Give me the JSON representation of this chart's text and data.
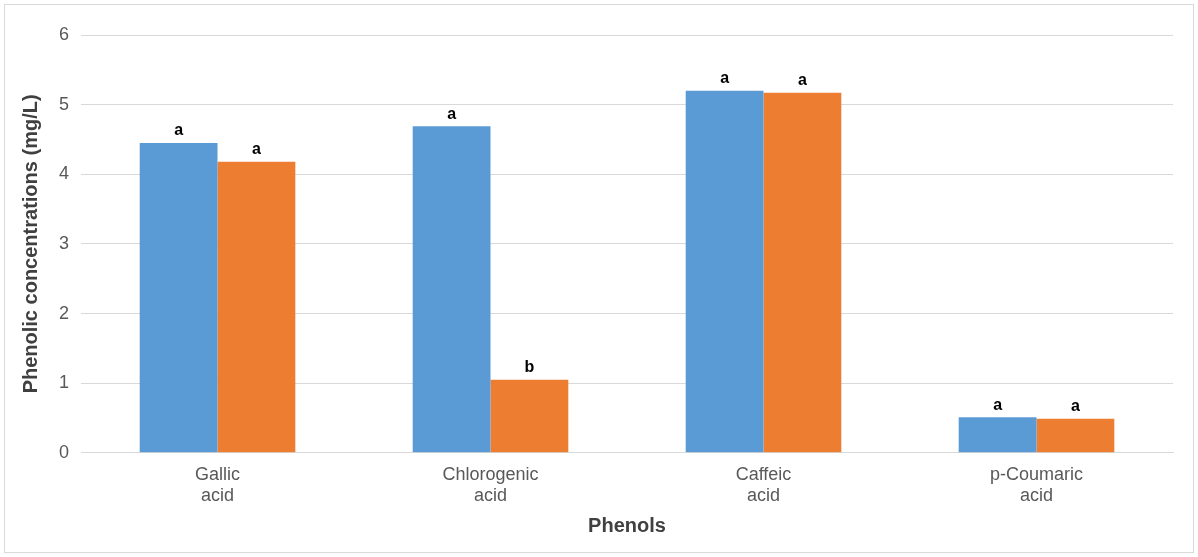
{
  "chart_data": {
    "type": "bar",
    "xlabel": "Phenols",
    "ylabel": "Phenolic concentrations (mg/L)",
    "categories": [
      "Gallic acid",
      "Chlorogenic acid",
      "Caffeic acid",
      "p-Coumaric acid"
    ],
    "series": [
      {
        "color": "#5b9bd5",
        "values": [
          4.45,
          4.69,
          5.2,
          0.51
        ]
      },
      {
        "color": "#ed7d31",
        "values": [
          4.18,
          1.05,
          5.17,
          0.49
        ]
      }
    ],
    "ylim": [
      0,
      6
    ],
    "yticks": [
      0,
      1,
      2,
      3,
      4,
      5,
      6
    ],
    "grid": "y",
    "legend": false,
    "annotations": [
      {
        "text": "a",
        "x": "Gallic acid",
        "y": 4.45
      },
      {
        "text": "a",
        "x": "Gallic acid",
        "y": 4.18
      },
      {
        "text": "a",
        "x": "Chlorogenic acid",
        "y": 4.69
      },
      {
        "text": "b",
        "x": "Chlorogenic acid",
        "y": 1.05
      },
      {
        "text": "a",
        "x": "Caffeic acid",
        "y": 5.2
      },
      {
        "text": "a",
        "x": "Caffeic acid",
        "y": 5.17
      },
      {
        "text": "a",
        "x": "p-Coumaric acid",
        "y": 0.51
      },
      {
        "text": "a",
        "x": "p-Coumaric acid",
        "y": 0.49
      }
    ]
  }
}
